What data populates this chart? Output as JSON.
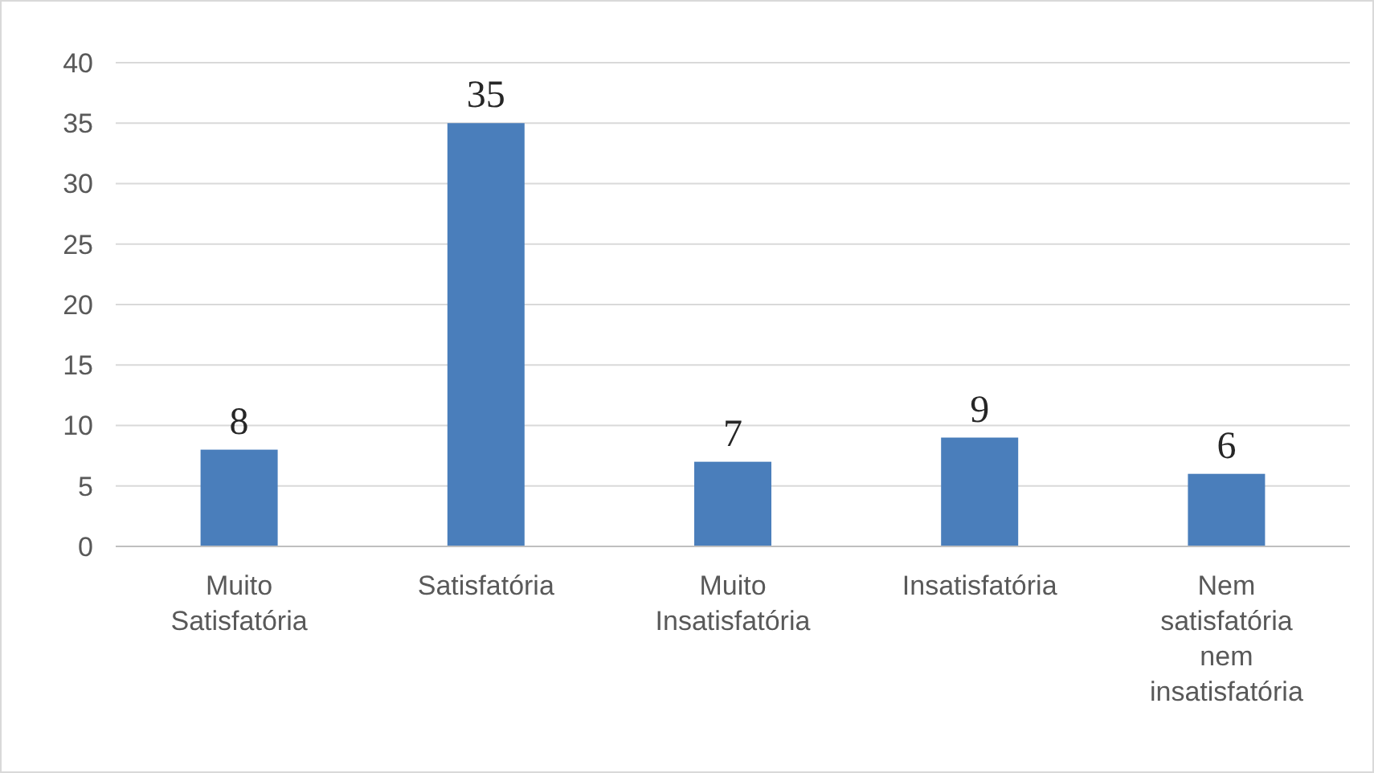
{
  "chart_data": {
    "type": "bar",
    "categories": [
      "Muito Satisfatória",
      "Satisfatória",
      "Muito Insatisfatória",
      "Insatisfatória",
      "Nem satisfatória nem insatisfatória"
    ],
    "values": [
      8,
      35,
      7,
      9,
      6
    ],
    "color": "#4a7ebb",
    "ylim": [
      0,
      40
    ],
    "yticks": [
      0,
      5,
      10,
      15,
      20,
      25,
      30,
      35,
      40
    ],
    "grid": "y",
    "data_labels": true
  }
}
